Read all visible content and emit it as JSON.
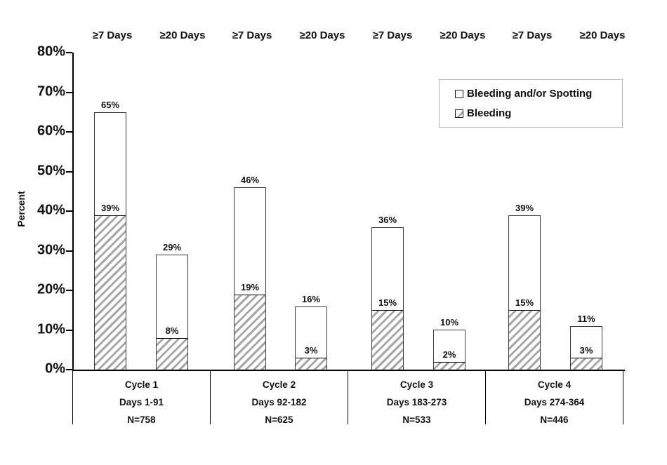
{
  "chart_data": {
    "type": "bar",
    "stacked": true,
    "ylabel": "Percent",
    "ylim": [
      0,
      80
    ],
    "grid": false,
    "legend_position": "upper-right",
    "ytick_labels_top_down": [
      "80%",
      "70%",
      "60%",
      "50%",
      "40%",
      "30%",
      "20%",
      "10%",
      "0%"
    ],
    "column_headers": [
      "≥7 Days",
      "≥20 Days",
      "≥7 Days",
      "≥20 Days",
      "≥7 Days",
      "≥20 Days",
      "≥7 Days",
      "≥20 Days"
    ],
    "legend": [
      {
        "label": "Bleeding and/or Spotting",
        "swatch": "open-square"
      },
      {
        "label": "Bleeding",
        "swatch": "hatched-square"
      }
    ],
    "series_note": "Each bar: total height = Bleeding and/or Spotting (open), lower hatched segment = Bleeding",
    "groups": [
      {
        "cycle": "Cycle 1",
        "days": "Days 1-91",
        "n": "N=758",
        "bars": [
          {
            "duration": "≥7 Days",
            "total": 65,
            "bleeding": 39,
            "total_label": "65%",
            "bleeding_label": "39%"
          },
          {
            "duration": "≥20 Days",
            "total": 29,
            "bleeding": 8,
            "total_label": "29%",
            "bleeding_label": "8%"
          }
        ]
      },
      {
        "cycle": "Cycle 2",
        "days": "Days 92-182",
        "n": "N=625",
        "bars": [
          {
            "duration": "≥7 Days",
            "total": 46,
            "bleeding": 19,
            "total_label": "46%",
            "bleeding_label": "19%"
          },
          {
            "duration": "≥20 Days",
            "total": 16,
            "bleeding": 3,
            "total_label": "16%",
            "bleeding_label": "3%"
          }
        ]
      },
      {
        "cycle": "Cycle 3",
        "days": "Days 183-273",
        "n": "N=533",
        "bars": [
          {
            "duration": "≥7 Days",
            "total": 36,
            "bleeding": 15,
            "total_label": "36%",
            "bleeding_label": "15%"
          },
          {
            "duration": "≥20 Days",
            "total": 10,
            "bleeding": 2,
            "total_label": "10%",
            "bleeding_label": "2%"
          }
        ]
      },
      {
        "cycle": "Cycle 4",
        "days": "Days 274-364",
        "n": "N=446",
        "bars": [
          {
            "duration": "≥7 Days",
            "total": 39,
            "bleeding": 15,
            "total_label": "39%",
            "bleeding_label": "15%"
          },
          {
            "duration": "≥20 Days",
            "total": 11,
            "bleeding": 3,
            "total_label": "11%",
            "bleeding_label": "3%"
          }
        ]
      }
    ],
    "colors": {
      "bar_fill": "#ffffff",
      "hatch_stripe": "#a6a6a6",
      "bar_border": "#3a3a3a",
      "axis": "#000000",
      "legend_border": "#b6b6b6",
      "text": "#111111"
    }
  }
}
